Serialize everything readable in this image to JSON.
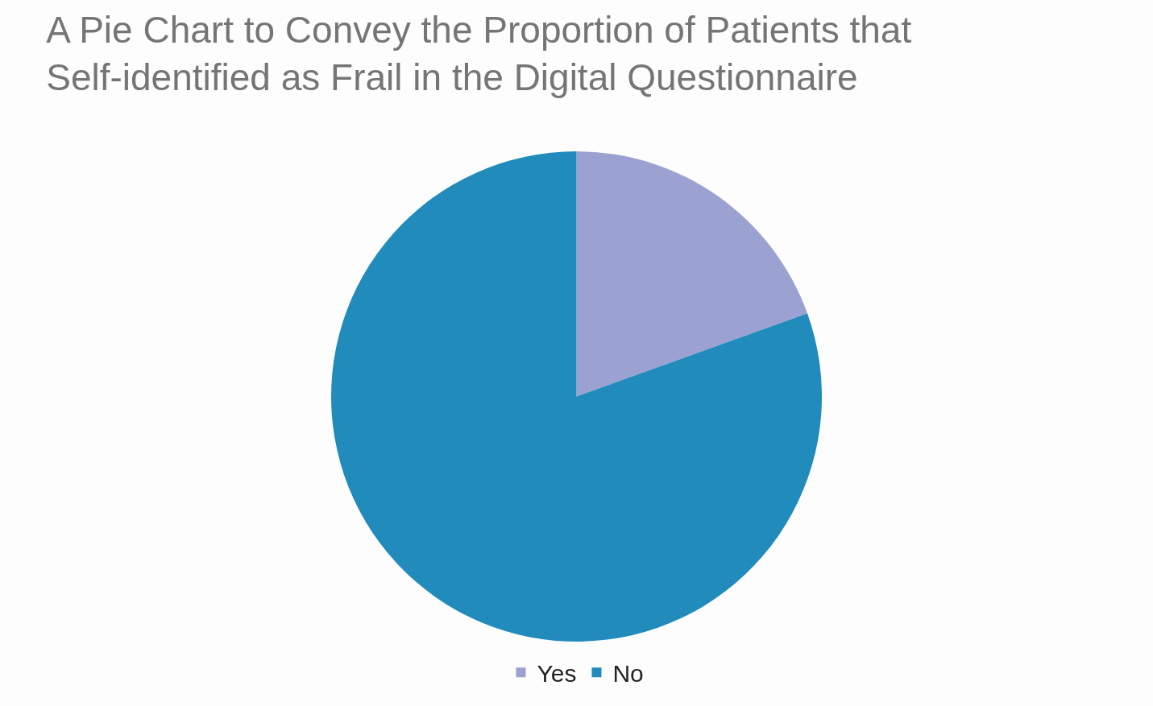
{
  "chart_data": {
    "type": "pie",
    "title": "A Pie Chart to Convey the Proportion of Patients that Self-identified as Frail in the Digital Questionnaire",
    "categories": [
      "Yes",
      "No"
    ],
    "values": [
      19.5,
      80.5
    ],
    "colors": [
      "#9ba1d0",
      "#218bbb"
    ],
    "legend": "bottom"
  }
}
